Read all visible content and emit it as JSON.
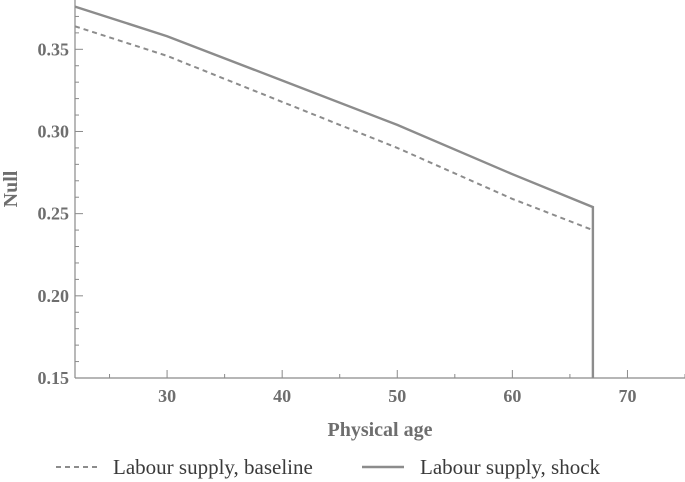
{
  "chart_data": {
    "type": "line",
    "title": "",
    "xlabel": "Physical age",
    "ylabel": "Null",
    "xlim": [
      22,
      75
    ],
    "ylim": [
      0.15,
      0.38
    ],
    "x_ticks_major": [
      30,
      40,
      50,
      60,
      70
    ],
    "x_tick_labels": [
      "30",
      "40",
      "50",
      "60",
      "70"
    ],
    "x_ticks_minor": [
      25,
      35,
      45,
      55,
      65,
      75
    ],
    "y_ticks_major": [
      0.15,
      0.2,
      0.25,
      0.3,
      0.35
    ],
    "y_tick_labels": [
      "0.15",
      "0.20",
      "0.25",
      "0.30",
      "0.35"
    ],
    "y_ticks_minor": [
      0.16,
      0.17,
      0.18,
      0.19,
      0.21,
      0.22,
      0.23,
      0.24,
      0.26,
      0.27,
      0.28,
      0.29,
      0.31,
      0.32,
      0.33,
      0.34,
      0.36,
      0.37
    ],
    "grid": false,
    "legend_position": "bottom",
    "series": [
      {
        "name": "Labour supply, baseline",
        "style": "dashed",
        "color": "#8c8c8c",
        "x": [
          22,
          30,
          40,
          50,
          60,
          67
        ],
        "y": [
          0.364,
          0.346,
          0.318,
          0.29,
          0.259,
          0.24
        ]
      },
      {
        "name": "Labour supply, shock",
        "style": "solid",
        "color": "#8c8c8c",
        "x": [
          22,
          30,
          40,
          50,
          60,
          67,
          67
        ],
        "y": [
          0.376,
          0.358,
          0.331,
          0.304,
          0.274,
          0.254,
          0.15
        ]
      }
    ]
  }
}
